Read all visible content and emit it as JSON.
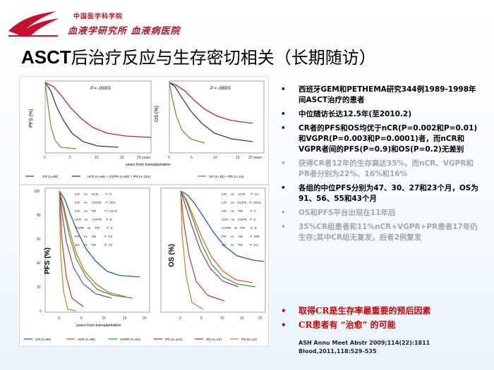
{
  "header": {
    "institution_line1": "中国医学科学院",
    "institution_line2": "血液学研究所 血液病医院"
  },
  "title": {
    "prefix": "ASCT",
    "rest": "后治疗反应与生存密切相关（长期随访）"
  },
  "bullets": [
    {
      "text": "西班牙GEM和PETHEMA研究344例1989-1998年间ASCT治疗的患者",
      "style": "black"
    },
    {
      "text": "中位随访长达12.5年(至2010.2)",
      "style": "black"
    },
    {
      "text": "CR者的PFS和OS均优于nCR(P=0.002和P=0.01)和VGPR(P=0.003和P=0.0001)者，而nCR和VGPR者间的PFS(P=0.9)和OS(P=0.2)无差别",
      "style": "black"
    },
    {
      "text": "获得CR者12年的生存高达35%，而nCR、VGPR和PR者分别为22%、16%和16%",
      "style": "grey"
    },
    {
      "text": "各组的中位PFS分别为47、30、27和23个月，OS为91、56、55和43个月",
      "style": "black"
    },
    {
      "text": "OS和PFS平台出现在11年后",
      "style": "grey"
    },
    {
      "text": "35%CR组患者和11%nCR+VGPR+PR患者17年仍生存;其中CR组无复发，后者2例复发",
      "style": "grey"
    },
    {
      "text": "取得CR是生存率最重要的预后因素",
      "style": "red"
    },
    {
      "text": "CR患者有 “治愈” 的可能",
      "style": "red"
    }
  ],
  "reference": {
    "line1": "ASH Annu Meet Abstr 2009;114(22):1811",
    "line2": "Blood,2011,118:529-535"
  },
  "figures": {
    "top": {
      "pvalue": "P = .00001",
      "pfs_label": "PFS (%)",
      "os_label": "OS (%)",
      "xlabel": "years from transplantation",
      "legend": [
        "CR (n=84)",
        "nCR (n=66) + VGPR (n=54) + PR (n=114)",
        "SD (n=12) + PD (n=14)"
      ]
    },
    "bottom": {
      "pfs_label": "PFS (%)",
      "os_label": "OS (%)",
      "xlabel": "years from transplantation",
      "legend": [
        "CR (n=84)",
        "nCR (n=66)",
        "VGPR (n=54)",
        "PR (n=114)",
        "SD (n=12)",
        "PD (n=14)"
      ],
      "comparisons_pfs": [
        [
          "CR",
          "vs",
          "nCR",
          "P .0"
        ],
        [
          "CR",
          "vs",
          "VGPR",
          "P .003"
        ],
        [
          "CR",
          "vs",
          "PR",
          "P <10-3"
        ],
        [
          "nCR",
          "vs",
          "VGPR",
          "P .9"
        ],
        [
          "VGPR",
          "vs",
          "PR",
          "P .8"
        ],
        [
          "PR",
          "vs",
          "SD",
          "P .03"
        ],
        [
          "SD",
          "vs",
          "PD",
          "P .03"
        ]
      ],
      "comparisons_os": [
        [
          "CR",
          "vs",
          "nCR",
          "P .01"
        ],
        [
          "CR",
          "vs",
          "VGPR",
          "P .0001"
        ],
        [
          "CR",
          "vs",
          "PR",
          "P .0"
        ],
        [
          "nCR",
          "vs",
          "VGPR",
          "P .2"
        ],
        [
          "VGPR",
          "vs",
          "PR",
          "P .8"
        ],
        [
          "PR",
          "vs",
          "SD",
          "P .005"
        ],
        [
          "SD",
          "vs",
          "PD",
          "P .61"
        ]
      ]
    },
    "ticks_x": [
      "0",
      "5",
      "10",
      "15",
      "20 years"
    ],
    "ticks_x_plain": [
      "0",
      "5",
      "10",
      "15",
      "20"
    ],
    "ticks_y": [
      "100",
      "80",
      "60",
      "40",
      "20",
      "0"
    ],
    "colors": {
      "cr": "#1a5fb4",
      "ncr": "#e05a10",
      "vgpr": "#2e9e2e",
      "pr": "#7a3fa0",
      "sd": "#c0392b",
      "pd": "#b08a20",
      "navy": "#1f3a93",
      "red": "#c22525",
      "tan": "#a08030"
    }
  }
}
